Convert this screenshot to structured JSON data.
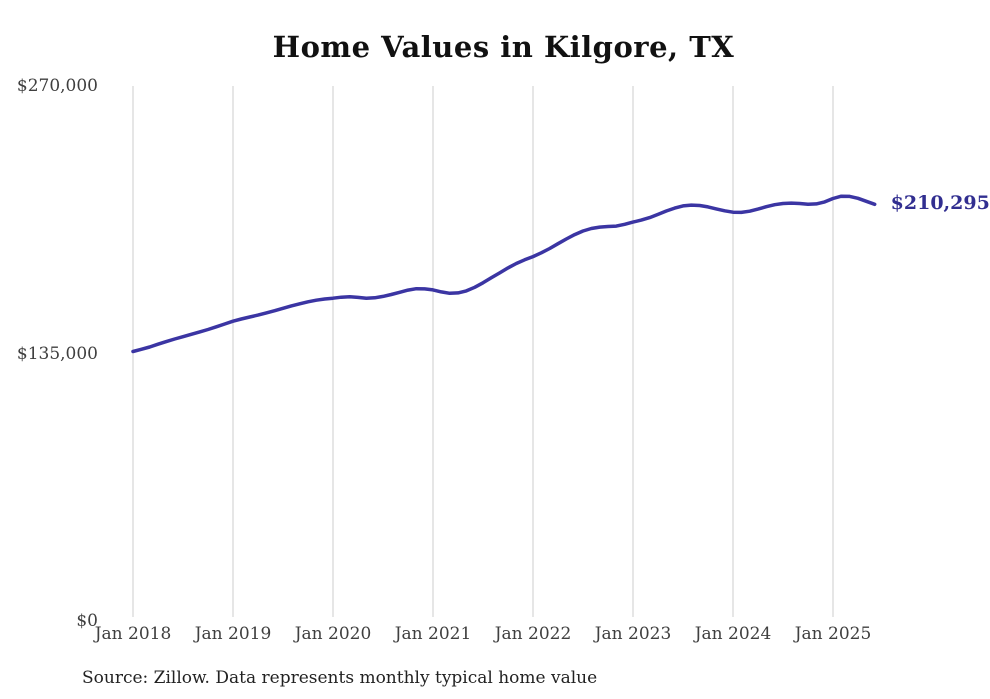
{
  "chart_data": {
    "type": "line",
    "title": "Home Values in Kilgore, TX",
    "series_name": "Monthly typical home value",
    "start_month": "2018-01",
    "frequency": "monthly",
    "values": [
      136000,
      137100,
      138300,
      139700,
      141000,
      142300,
      143500,
      144700,
      145900,
      147100,
      148500,
      149900,
      151300,
      152400,
      153400,
      154400,
      155500,
      156600,
      157800,
      159000,
      160100,
      161100,
      161900,
      162500,
      162900,
      163400,
      163600,
      163300,
      162900,
      163100,
      163800,
      164800,
      165900,
      167000,
      167700,
      167600,
      167100,
      166100,
      165400,
      165600,
      166600,
      168400,
      170700,
      173200,
      175700,
      178200,
      180400,
      182300,
      183900,
      185800,
      188000,
      190400,
      192800,
      195000,
      196800,
      198100,
      198800,
      199100,
      199300,
      200200,
      201300,
      202300,
      203600,
      205200,
      206900,
      208400,
      209500,
      209900,
      209700,
      209000,
      208000,
      207000,
      206300,
      206200,
      206800,
      207900,
      209100,
      210100,
      210700,
      210900,
      210700,
      210300,
      210500,
      211500,
      213200,
      214400,
      214300,
      213300,
      211800,
      210295
    ],
    "end_value": 210295,
    "end_label": "$210,295",
    "x_tick_labels": [
      "Jan 2018",
      "Jan 2019",
      "Jan 2020",
      "Jan 2021",
      "Jan 2022",
      "Jan 2023",
      "Jan 2024",
      "Jan 2025"
    ],
    "x_tick_month_indices": [
      0,
      12,
      24,
      36,
      48,
      60,
      72,
      84
    ],
    "y_ticks": [
      {
        "value": 270000,
        "label": "$270,000"
      },
      {
        "value": 135000,
        "label": "$135,000"
      },
      {
        "value": 0,
        "label": "$0"
      }
    ],
    "ylim": [
      0,
      270000
    ],
    "grid": "vertical-only",
    "legend": "none",
    "colors": {
      "line": "#3b35a3",
      "end_label": "#312e90",
      "gridline": "#cccccc",
      "axis_text": "#3f3f3f",
      "title_text": "#111111",
      "source_text": "#222222"
    },
    "source_note": "Source: Zillow. Data represents monthly typical home value"
  }
}
